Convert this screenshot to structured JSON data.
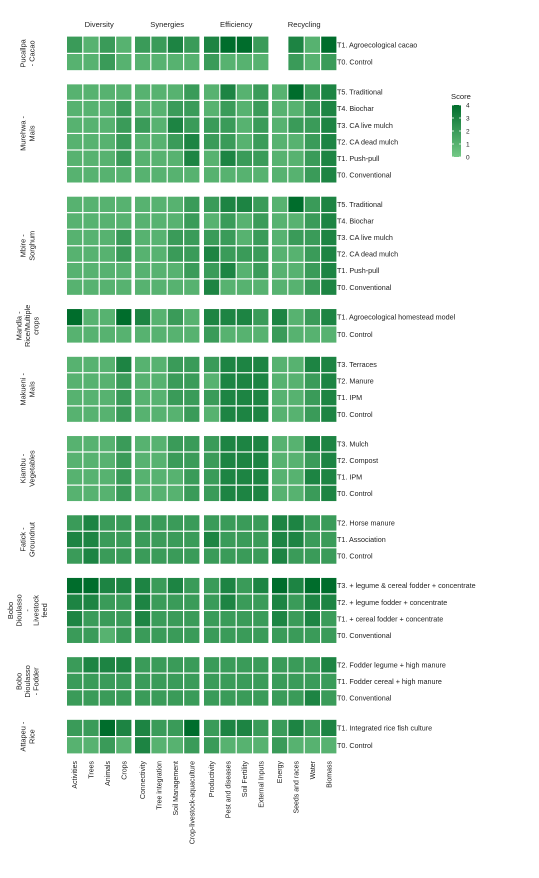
{
  "chart_data": {
    "type": "heatmap",
    "legend": {
      "title": "Score",
      "min": 0,
      "max": 4,
      "ticks": [
        0,
        1,
        2,
        3,
        4
      ],
      "color_low": "#74c986",
      "color_high": "#006d2c",
      "placement": "right"
    },
    "column_groups": [
      {
        "name": "Diversity",
        "columns": [
          "Activities",
          "Trees",
          "Animals",
          "Crops"
        ]
      },
      {
        "name": "Synergies",
        "columns": [
          "Connectivity",
          "Tree integration",
          "Soil Management",
          "Crop-livestock-aquaculture"
        ]
      },
      {
        "name": "Efficiency",
        "columns": [
          "Productivity",
          "Pest and diseases",
          "Soil Fertility",
          "External Inputs"
        ]
      },
      {
        "name": "Recycling",
        "columns": [
          "Energy",
          "Seeds and races",
          "Water",
          "Biomass"
        ]
      }
    ],
    "sites": [
      {
        "name": [
          "Pucallpa",
          "- Cacao"
        ],
        "treatments": [
          "T1. Agroecological cacao",
          "T0. Control"
        ],
        "values": [
          [
            2,
            1,
            2,
            1,
            2,
            2,
            3,
            2,
            3,
            4,
            4,
            2,
            null,
            3,
            1,
            4
          ],
          [
            1,
            1,
            2,
            1,
            1,
            1,
            1,
            1,
            2,
            1,
            1,
            1,
            null,
            2,
            1,
            2
          ]
        ]
      },
      {
        "name": [
          "Murehwa -",
          "Maïs"
        ],
        "treatments": [
          "T5. Traditional",
          "T4. Biochar",
          "T3. CA live mulch",
          "T2. CA dead mulch",
          "T1. Push-pull",
          "T0. Conventional"
        ],
        "values": [
          [
            1,
            1,
            1,
            1,
            1,
            1,
            1,
            2,
            1,
            3,
            1,
            2,
            1,
            4,
            2,
            3
          ],
          [
            1,
            1,
            1,
            2,
            1,
            1,
            2,
            2,
            1,
            2,
            1,
            2,
            1,
            1,
            2,
            3
          ],
          [
            1,
            1,
            1,
            2,
            2,
            1,
            3,
            2,
            2,
            2,
            1,
            2,
            1,
            2,
            2,
            3
          ],
          [
            1,
            1,
            1,
            2,
            1,
            1,
            2,
            3,
            2,
            2,
            1,
            2,
            1,
            1,
            2,
            3
          ],
          [
            1,
            1,
            1,
            2,
            1,
            1,
            1,
            3,
            1,
            3,
            2,
            2,
            1,
            1,
            2,
            3
          ],
          [
            1,
            1,
            1,
            1,
            1,
            1,
            1,
            1,
            1,
            1,
            1,
            1,
            1,
            1,
            2,
            3
          ]
        ]
      },
      {
        "name": [
          "Mbire -",
          "Sorghum"
        ],
        "treatments": [
          "T5. Traditional",
          "T4. Biochar",
          "T3. CA live mulch",
          "T2. CA dead mulch",
          "T1. Push-pull",
          "T0. Conventional"
        ],
        "values": [
          [
            1,
            1,
            1,
            1,
            1,
            1,
            1,
            2,
            2,
            3,
            3,
            2,
            1,
            4,
            2,
            3
          ],
          [
            1,
            1,
            1,
            1,
            1,
            1,
            1,
            2,
            1,
            2,
            1,
            2,
            1,
            1,
            2,
            3
          ],
          [
            1,
            1,
            1,
            2,
            1,
            1,
            2,
            2,
            2,
            2,
            1,
            2,
            1,
            2,
            2,
            3
          ],
          [
            1,
            1,
            1,
            2,
            1,
            1,
            2,
            2,
            3,
            2,
            2,
            2,
            1,
            1,
            2,
            3
          ],
          [
            1,
            1,
            1,
            1,
            1,
            1,
            1,
            2,
            2,
            3,
            1,
            2,
            1,
            1,
            2,
            3
          ],
          [
            1,
            1,
            1,
            1,
            1,
            1,
            1,
            1,
            3,
            1,
            1,
            1,
            1,
            1,
            2,
            3
          ]
        ]
      },
      {
        "name": [
          "Mandla -",
          "Rice/Multiple",
          "crops"
        ],
        "treatments": [
          "T1. Agroecological homestead model",
          "T0. Control"
        ],
        "values": [
          [
            4,
            1,
            1,
            4,
            3,
            1,
            2,
            1,
            3,
            3,
            3,
            2,
            3,
            1,
            2,
            3
          ],
          [
            1,
            1,
            1,
            1,
            1,
            1,
            1,
            1,
            2,
            1,
            1,
            1,
            2,
            1,
            1,
            1
          ]
        ]
      },
      {
        "name": [
          "Makueni -",
          "Maïs"
        ],
        "treatments": [
          "T3. Terraces",
          "T2. Manure",
          "T1. IPM",
          "T0. Control"
        ],
        "values": [
          [
            1,
            1,
            1,
            3,
            1,
            1,
            2,
            2,
            2,
            3,
            3,
            3,
            1,
            1,
            3,
            3
          ],
          [
            1,
            1,
            1,
            2,
            1,
            1,
            2,
            2,
            1,
            3,
            3,
            3,
            1,
            1,
            2,
            3
          ],
          [
            1,
            1,
            1,
            2,
            1,
            1,
            2,
            2,
            2,
            3,
            3,
            3,
            1,
            1,
            2,
            3
          ],
          [
            1,
            1,
            1,
            2,
            1,
            1,
            1,
            2,
            1,
            3,
            3,
            3,
            1,
            1,
            2,
            3
          ]
        ]
      },
      {
        "name": [
          "Kiambu -",
          "Vegetables"
        ],
        "treatments": [
          "T3. Mulch",
          "T2. Compost",
          "T1. IPM",
          "T0. Control"
        ],
        "values": [
          [
            1,
            1,
            1,
            2,
            1,
            1,
            2,
            2,
            2,
            3,
            3,
            3,
            1,
            1,
            3,
            3
          ],
          [
            1,
            1,
            1,
            2,
            1,
            1,
            2,
            2,
            2,
            3,
            3,
            3,
            1,
            1,
            2,
            3
          ],
          [
            1,
            1,
            1,
            2,
            1,
            1,
            1,
            2,
            2,
            3,
            3,
            3,
            1,
            1,
            3,
            3
          ],
          [
            1,
            1,
            1,
            2,
            1,
            1,
            1,
            2,
            2,
            3,
            3,
            3,
            1,
            1,
            2,
            3
          ]
        ]
      },
      {
        "name": [
          "Fatick -",
          "Groundnut"
        ],
        "treatments": [
          "T2. Horse manure",
          "T1. Association",
          "T0. Control"
        ],
        "values": [
          [
            2,
            3,
            2,
            2,
            2,
            2,
            2,
            2,
            2,
            2,
            2,
            2,
            3,
            3,
            2,
            2
          ],
          [
            3,
            3,
            2,
            2,
            2,
            2,
            2,
            2,
            3,
            2,
            2,
            2,
            3,
            3,
            2,
            2
          ],
          [
            2,
            3,
            2,
            2,
            2,
            2,
            2,
            2,
            2,
            2,
            2,
            2,
            3,
            2,
            2,
            2
          ]
        ]
      },
      {
        "name": [
          "Bobo",
          "Dioulasso",
          "-",
          "Livestock",
          "feed"
        ],
        "treatments": [
          "T3. + legume & cereal fodder + concentrate",
          "T2. + legume fodder + concentrate",
          "T1. + cereal fodder +  concentrate",
          "T0. Conventional"
        ],
        "values": [
          [
            4,
            4,
            3,
            3,
            3,
            2,
            3,
            2,
            2,
            3,
            2,
            3,
            4,
            3,
            4,
            4
          ],
          [
            3,
            3,
            2,
            2,
            3,
            2,
            2,
            2,
            2,
            3,
            2,
            2,
            3,
            2,
            3,
            3
          ],
          [
            3,
            2,
            2,
            2,
            3,
            2,
            2,
            2,
            2,
            2,
            2,
            2,
            3,
            2,
            3,
            2
          ],
          [
            2,
            2,
            1,
            2,
            2,
            2,
            2,
            2,
            2,
            2,
            2,
            2,
            2,
            2,
            2,
            2
          ]
        ]
      },
      {
        "name": [
          "Bobo",
          "Dioulasso",
          "- Fodder"
        ],
        "treatments": [
          "T2. Fodder legume + high manure",
          "T1. Fodder cereal + high manure",
          "T0. Conventional"
        ],
        "values": [
          [
            2,
            3,
            3,
            3,
            2,
            2,
            2,
            2,
            2,
            2,
            2,
            2,
            2,
            2,
            2,
            3
          ],
          [
            2,
            2,
            2,
            2,
            2,
            2,
            2,
            2,
            2,
            2,
            2,
            2,
            2,
            2,
            2,
            2
          ],
          [
            2,
            2,
            2,
            2,
            2,
            2,
            2,
            2,
            2,
            2,
            2,
            2,
            2,
            2,
            3,
            2
          ]
        ]
      },
      {
        "name": [
          "Attapeu -",
          "Rice"
        ],
        "treatments": [
          "T1. Integrated rice fish culture",
          "T0. Control"
        ],
        "values": [
          [
            2,
            2,
            4,
            3,
            3,
            2,
            2,
            4,
            2,
            3,
            3,
            2,
            2,
            3,
            2,
            3
          ],
          [
            1,
            1,
            2,
            1,
            3,
            1,
            1,
            2,
            2,
            1,
            1,
            1,
            2,
            1,
            1,
            1
          ]
        ]
      }
    ]
  }
}
